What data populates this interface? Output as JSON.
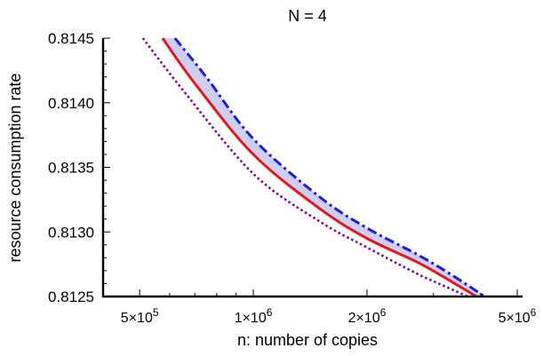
{
  "chart_data": {
    "type": "line",
    "title": "N = 4",
    "xlabel": "n: number of copies",
    "ylabel": "resource consumption rate",
    "x_scale": "log",
    "xlim": [
      400000,
      5000000
    ],
    "ylim": [
      0.8125,
      0.8145
    ],
    "grid": false,
    "x_ticks": [
      {
        "value": 500000,
        "mantissa": "5",
        "exponent": "5"
      },
      {
        "value": 1000000,
        "mantissa": "1",
        "exponent": "6"
      },
      {
        "value": 2000000,
        "mantissa": "2",
        "exponent": "6"
      },
      {
        "value": 5000000,
        "mantissa": "5",
        "exponent": "6"
      }
    ],
    "y_ticks": [
      {
        "value": 0.8125,
        "label": "0.8125"
      },
      {
        "value": 0.813,
        "label": "0.8130"
      },
      {
        "value": 0.8135,
        "label": "0.8135"
      },
      {
        "value": 0.814,
        "label": "0.8140"
      },
      {
        "value": 0.8145,
        "label": "0.8145"
      }
    ],
    "band": {
      "color": "#c9c9ee",
      "upper_series": "blue-dashdot",
      "lower_series": "red-solid"
    },
    "series": [
      {
        "key": "red-solid",
        "color": "#e8161a",
        "style": "solid",
        "x": [
          575000,
          700000,
          1000000,
          1500000,
          2000000,
          2700000,
          3200000,
          3900000
        ],
        "y": [
          0.8145,
          0.81415,
          0.8136,
          0.81318,
          0.81295,
          0.81277,
          0.81265,
          0.8125
        ]
      },
      {
        "key": "blue-dashdot",
        "color": "#1a1aee",
        "style": "dashdot",
        "x": [
          620000,
          750000,
          1000000,
          1500000,
          2000000,
          2700000,
          3300000,
          4100000
        ],
        "y": [
          0.8145,
          0.8142,
          0.81372,
          0.81327,
          0.81303,
          0.81283,
          0.81268,
          0.8125
        ]
      },
      {
        "key": "purple-dotted",
        "color": "#8b008b",
        "style": "dotted",
        "x": [
          510000,
          650000,
          1000000,
          1500000,
          2000000,
          2700000,
          3100000,
          3700000
        ],
        "y": [
          0.8145,
          0.8141,
          0.81345,
          0.81308,
          0.81288,
          0.81268,
          0.8126,
          0.8125
        ]
      }
    ]
  }
}
